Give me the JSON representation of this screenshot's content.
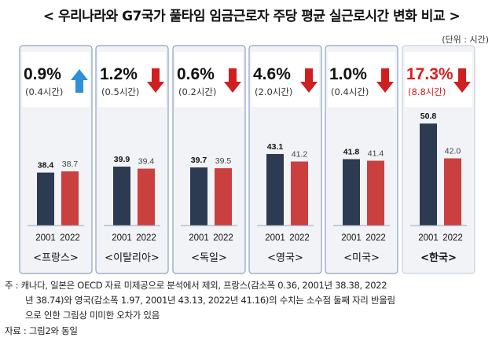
{
  "title": "< 우리나라와 G7국가 풀타임 임금근로자 주당 평균 실근로시간 변화 비교 >",
  "unit": "(단위 : 시간)",
  "chart_data": {
    "type": "bar",
    "title": "< 우리나라와 G7국가 풀타임 임금근로자 주당 평균 실근로시간 변화 비교 >",
    "unit": "(단위 : 시간)",
    "categories": [
      "2001",
      "2022"
    ],
    "ylim": [
      25,
      55
    ],
    "panels": [
      {
        "country": "<프랑스>",
        "values": [
          38.4,
          38.7
        ],
        "labels": [
          "38.4",
          "38.7"
        ],
        "change": "0.9%",
        "hours": "(0.4시간)",
        "direction": "up",
        "highlight": false
      },
      {
        "country": "<이탈리아>",
        "values": [
          39.9,
          39.4
        ],
        "labels": [
          "39.9",
          "39.4"
        ],
        "change": "1.2%",
        "hours": "(0.5시간)",
        "direction": "down",
        "highlight": false
      },
      {
        "country": "<독일>",
        "values": [
          39.7,
          39.5
        ],
        "labels": [
          "39.7",
          "39.5"
        ],
        "change": "0.6%",
        "hours": "(0.2시간)",
        "direction": "down",
        "highlight": false
      },
      {
        "country": "<영국>",
        "values": [
          43.1,
          41.2
        ],
        "labels": [
          "43.1",
          "41.2"
        ],
        "change": "4.6%",
        "hours": "(2.0시간)",
        "direction": "down",
        "highlight": false
      },
      {
        "country": "<미국>",
        "values": [
          41.8,
          41.4
        ],
        "labels": [
          "41.8",
          "41.4"
        ],
        "change": "1.0%",
        "hours": "(0.4시간)",
        "direction": "down",
        "highlight": false
      },
      {
        "country": "<한국>",
        "values": [
          50.8,
          42.0
        ],
        "labels": [
          "50.8",
          "42.0"
        ],
        "change": "17.3%",
        "hours": "(8.8시간)",
        "direction": "down",
        "highlight": true
      }
    ],
    "colors": {
      "y2001": "#2c3a52",
      "y2022": "#c9403f",
      "up_arrow": "#2f8fd8",
      "down_arrow": "#d01f1f",
      "highlight_text": "#e11b1b",
      "panel_border": "#8aa2c4",
      "panel_bg": "#f1f3f7"
    }
  },
  "notes": {
    "line1": "주 : 캐나다, 일본은 OECD 자료 미제공으로 분석에서 제외, 프랑스(감소폭 0.36, 2001년 38.38, 2022",
    "line2": "년 38.74)와 영국(감소폭 1.97, 2001년 43.13, 2022년 41.16)의 수치는 소수점 둘째 자리 반올림",
    "line3": "으로 인한 그림상 미미한 오차가 있음",
    "source": "자료 : 그림2와 동일"
  }
}
